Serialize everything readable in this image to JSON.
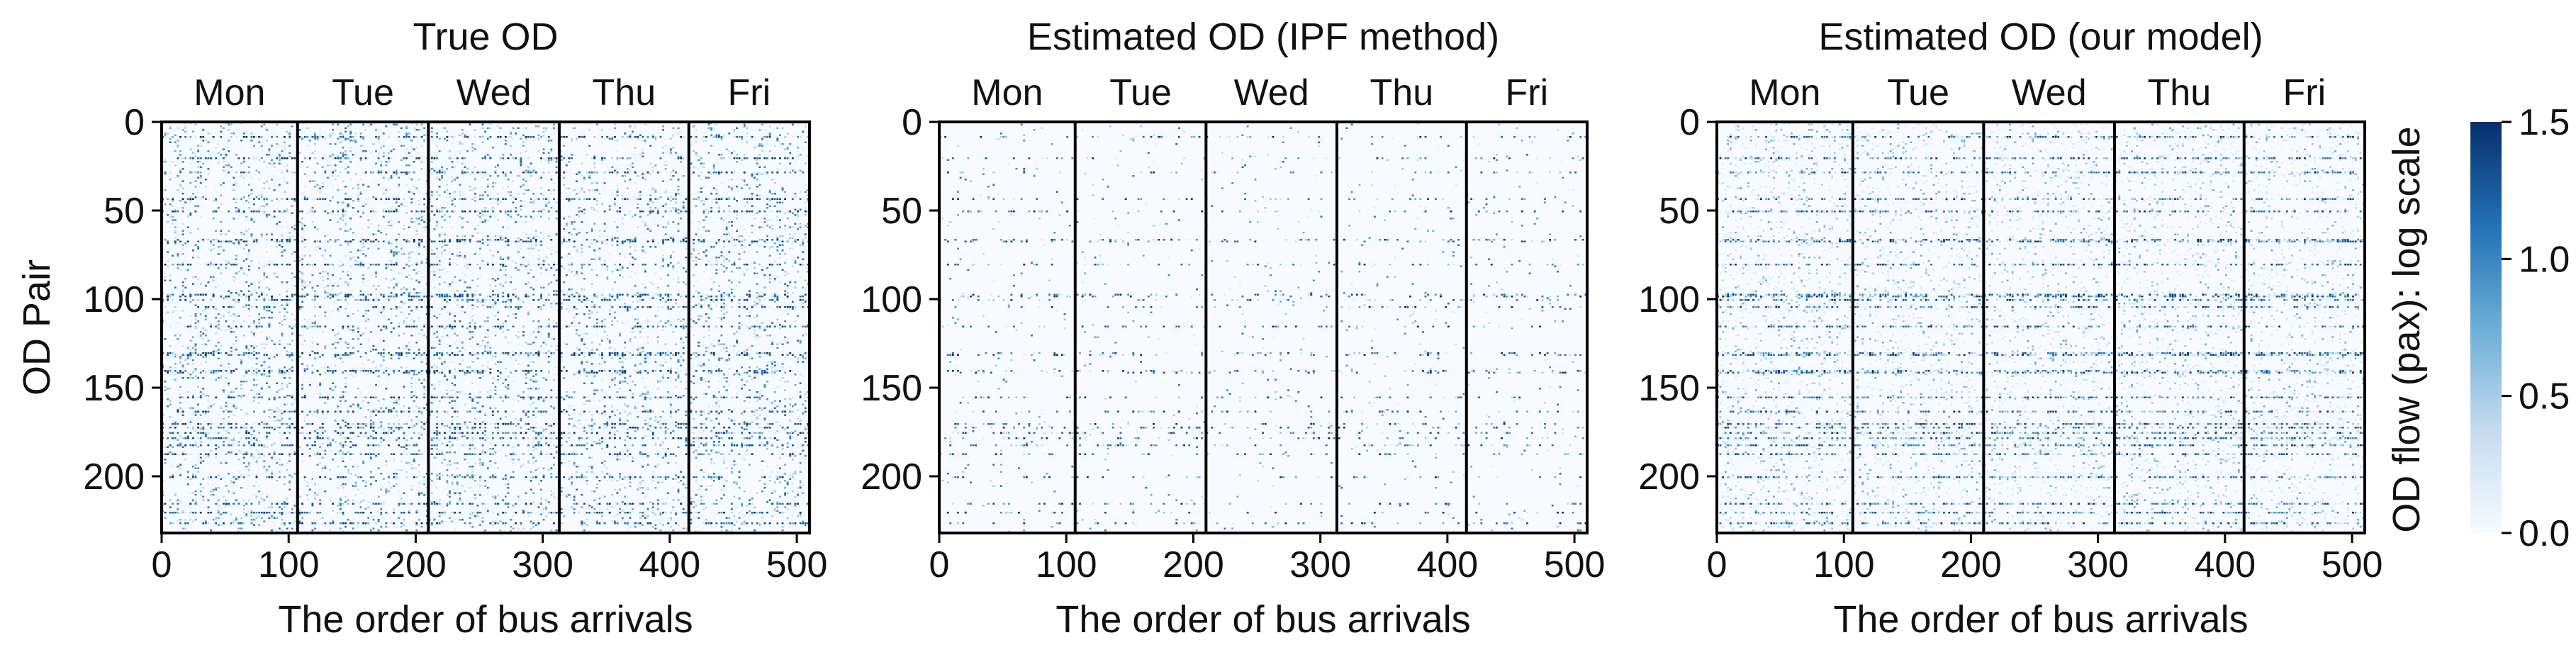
{
  "chart_data": {
    "type": "heatmap",
    "panels": [
      {
        "title": "True OD",
        "density": "high",
        "xlabel": "The order of bus arrivals",
        "ylabel": "OD Pair"
      },
      {
        "title": "Estimated OD (IPF method)",
        "density": "low",
        "xlabel": "The order of bus arrivals",
        "ylabel": ""
      },
      {
        "title": "Estimated OD (our model)",
        "density": "medium",
        "xlabel": "The order of bus arrivals",
        "ylabel": ""
      }
    ],
    "days": [
      "Mon",
      "Tue",
      "Wed",
      "Thu",
      "Fri"
    ],
    "day_boundaries": [
      107,
      210,
      313,
      415
    ],
    "xlim": [
      0,
      510
    ],
    "ylim": [
      0,
      232
    ],
    "y_inverted": true,
    "xticks": [
      0,
      100,
      200,
      300,
      400,
      500
    ],
    "yticks": [
      0,
      50,
      100,
      150,
      200
    ],
    "colorbar": {
      "label": "OD flow (pax): log scale",
      "range": [
        0.0,
        1.5
      ],
      "ticks": [
        "0.0",
        "0.5",
        "1.0",
        "1.5"
      ],
      "colormap": "Blues"
    },
    "colors": {
      "background": "#f7fbff",
      "low": "#c6dbef",
      "mid": "#4292c6",
      "high": "#08306b"
    }
  }
}
